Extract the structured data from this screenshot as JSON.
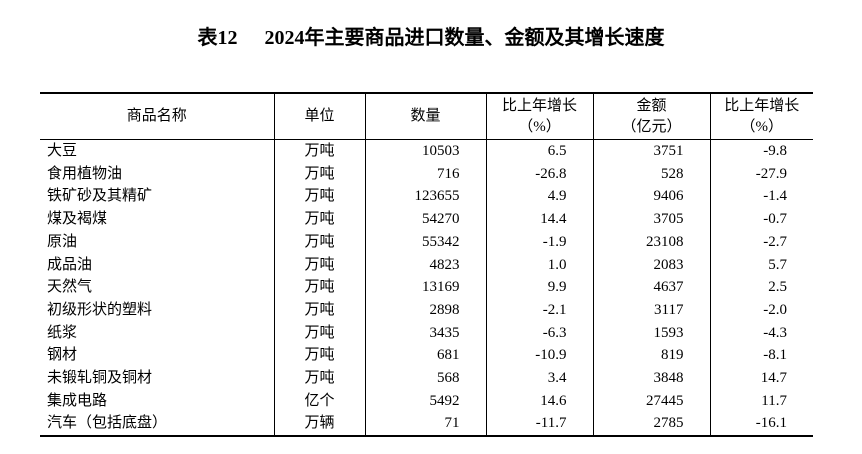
{
  "colors": {
    "background": "#ffffff",
    "text": "#000000",
    "border": "#000000"
  },
  "title": {
    "prefix": "表12",
    "text": "2024年主要商品进口数量、金额及其增长速度"
  },
  "table": {
    "columns": [
      {
        "key": "name",
        "label": "商品名称"
      },
      {
        "key": "unit",
        "label": "单位"
      },
      {
        "key": "quantity",
        "label": "数量"
      },
      {
        "key": "quantity_growth",
        "label": "比上年增长",
        "label_line2": "（%）"
      },
      {
        "key": "amount",
        "label": "金额",
        "label_line2": "（亿元）"
      },
      {
        "key": "amount_growth",
        "label": "比上年增长",
        "label_line2": "（%）"
      }
    ],
    "rows": [
      [
        "大豆",
        "万吨",
        "10503",
        "6.5",
        "3751",
        "-9.8"
      ],
      [
        "食用植物油",
        "万吨",
        "716",
        "-26.8",
        "528",
        "-27.9"
      ],
      [
        "铁矿砂及其精矿",
        "万吨",
        "123655",
        "4.9",
        "9406",
        "-1.4"
      ],
      [
        "煤及褐煤",
        "万吨",
        "54270",
        "14.4",
        "3705",
        "-0.7"
      ],
      [
        "原油",
        "万吨",
        "55342",
        "-1.9",
        "23108",
        "-2.7"
      ],
      [
        "成品油",
        "万吨",
        "4823",
        "1.0",
        "2083",
        "5.7"
      ],
      [
        "天然气",
        "万吨",
        "13169",
        "9.9",
        "4637",
        "2.5"
      ],
      [
        "初级形状的塑料",
        "万吨",
        "2898",
        "-2.1",
        "3117",
        "-2.0"
      ],
      [
        "纸浆",
        "万吨",
        "3435",
        "-6.3",
        "1593",
        "-4.3"
      ],
      [
        "钢材",
        "万吨",
        "681",
        "-10.9",
        "819",
        "-8.1"
      ],
      [
        "未锻轧铜及铜材",
        "万吨",
        "568",
        "3.4",
        "3848",
        "14.7"
      ],
      [
        "集成电路",
        "亿个",
        "5492",
        "14.6",
        "27445",
        "11.7"
      ],
      [
        "汽车（包括底盘）",
        "万辆",
        "71",
        "-11.7",
        "2785",
        "-16.1"
      ]
    ]
  }
}
